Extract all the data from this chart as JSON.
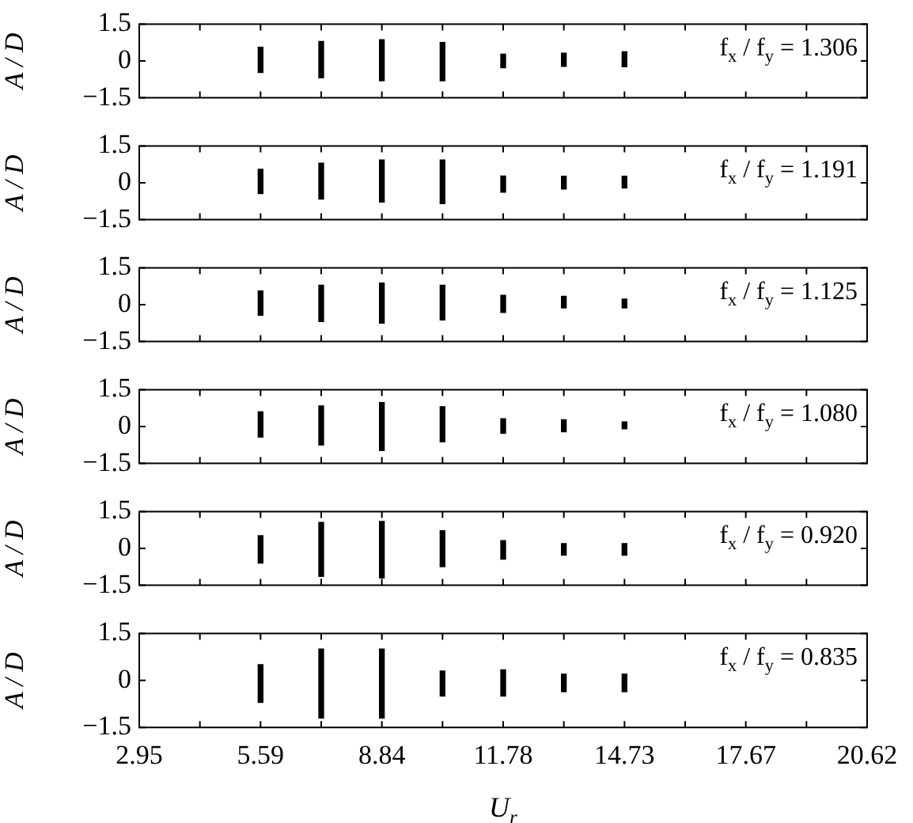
{
  "chart_data": [
    {
      "type": "bar",
      "categories": [
        "2.95",
        null,
        "5.59",
        null,
        "8.84",
        null,
        "11.78",
        null,
        "14.73",
        null,
        "17.67",
        null,
        "20.62"
      ],
      "base": [
        null,
        null,
        -0.47,
        -0.69,
        -0.81,
        -0.81,
        -0.28,
        -0.22,
        -0.24,
        null,
        null,
        null,
        null
      ],
      "values": [
        null,
        null,
        1.03,
        1.48,
        1.67,
        1.56,
        0.56,
        0.54,
        0.61,
        null,
        null,
        null,
        null
      ],
      "color": "#000000",
      "ylim": [
        -1.5,
        1.5
      ],
      "yticks": [
        -1.5,
        0,
        1.5
      ],
      "ylabel": "A / D",
      "annotations": [
        "f$_{x}$ / f$_{y}$ = 1.306"
      ],
      "tick_labels": "y"
    },
    {
      "type": "bar",
      "categories": [
        "2.95",
        null,
        "5.59",
        null,
        "8.84",
        null,
        "11.78",
        null,
        "14.73",
        null,
        "17.67",
        null,
        "20.62"
      ],
      "base": [
        null,
        null,
        -0.44,
        -0.66,
        -0.78,
        -0.85,
        -0.38,
        -0.25,
        -0.21,
        null,
        null,
        null,
        null
      ],
      "values": [
        null,
        null,
        0.99,
        1.46,
        1.71,
        1.78,
        0.66,
        0.52,
        0.48,
        null,
        null,
        null,
        null
      ],
      "color": "#000000",
      "ylim": [
        -1.5,
        1.5
      ],
      "yticks": [
        -1.5,
        0,
        1.5
      ],
      "ylabel": "A / D",
      "annotations": [
        "f$_{x}$ / f$_{y}$ = 1.191"
      ],
      "tick_labels": "y"
    },
    {
      "type": "bar",
      "categories": [
        "2.95",
        null,
        "5.59",
        null,
        "8.84",
        null,
        "11.78",
        null,
        "14.73",
        null,
        "17.67",
        null,
        "20.62"
      ],
      "base": [
        null,
        null,
        -0.43,
        -0.69,
        -0.75,
        -0.62,
        -0.32,
        -0.13,
        -0.13,
        null,
        null,
        null,
        null
      ],
      "values": [
        null,
        null,
        0.99,
        1.48,
        1.63,
        1.41,
        0.7,
        0.47,
        0.36,
        null,
        null,
        null,
        null
      ],
      "color": "#000000",
      "ylim": [
        -1.5,
        1.5
      ],
      "yticks": [
        -1.5,
        0,
        1.5
      ],
      "ylabel": "A / D",
      "annotations": [
        "f$_{x}$ / f$_{y}$ = 1.125"
      ],
      "tick_labels": "y"
    },
    {
      "type": "bar",
      "categories": [
        "2.95",
        null,
        "5.59",
        null,
        "8.84",
        null,
        "11.78",
        null,
        "14.73",
        null,
        "17.67",
        null,
        "20.62"
      ],
      "base": [
        null,
        null,
        -0.43,
        -0.75,
        -0.98,
        -0.62,
        -0.28,
        -0.21,
        -0.09,
        null,
        null,
        null,
        null
      ],
      "values": [
        null,
        null,
        1.03,
        1.59,
        1.96,
        1.43,
        0.6,
        0.49,
        0.28,
        null,
        null,
        null,
        null
      ],
      "color": "#000000",
      "ylim": [
        -1.5,
        1.5
      ],
      "yticks": [
        -1.5,
        0,
        1.5
      ],
      "ylabel": "A / D",
      "annotations": [
        "f$_{x}$ / f$_{y}$ = 1.080"
      ],
      "tick_labels": "y"
    },
    {
      "type": "bar",
      "categories": [
        "2.95",
        null,
        "5.59",
        null,
        "8.84",
        null,
        "11.78",
        null,
        "14.73",
        null,
        "17.67",
        null,
        "20.62"
      ],
      "base": [
        null,
        null,
        -0.6,
        -1.14,
        -1.2,
        -0.74,
        -0.44,
        -0.28,
        -0.28,
        null,
        null,
        null,
        null
      ],
      "values": [
        null,
        null,
        1.12,
        2.2,
        2.3,
        1.46,
        0.76,
        0.48,
        0.48,
        null,
        null,
        null,
        null
      ],
      "color": "#000000",
      "ylim": [
        -1.5,
        1.5
      ],
      "yticks": [
        -1.5,
        0,
        1.5
      ],
      "ylabel": "A / D",
      "annotations": [
        "f$_{x}$ / f$_{y}$ = 0.920"
      ],
      "tick_labels": "y"
    },
    {
      "type": "bar",
      "categories": [
        "2.95",
        null,
        "5.59",
        null,
        "8.84",
        null,
        "11.78",
        null,
        "14.73",
        null,
        "17.67",
        null,
        "20.62"
      ],
      "base": [
        null,
        null,
        -0.7,
        -1.2,
        -1.2,
        -0.5,
        -0.5,
        -0.36,
        -0.36,
        null,
        null,
        null,
        null
      ],
      "values": [
        null,
        null,
        1.2,
        2.2,
        2.2,
        0.8,
        0.84,
        0.56,
        0.56,
        null,
        null,
        null,
        null
      ],
      "color": "#000000",
      "ylim": [
        -1.5,
        1.5
      ],
      "yticks": [
        -1.5,
        0,
        1.5
      ],
      "ylabel": "A / D",
      "xlabel": "U$_{r}$",
      "annotations": [
        "f$_{x}$ / f$_{y}$ = 0.835"
      ]
    }
  ]
}
